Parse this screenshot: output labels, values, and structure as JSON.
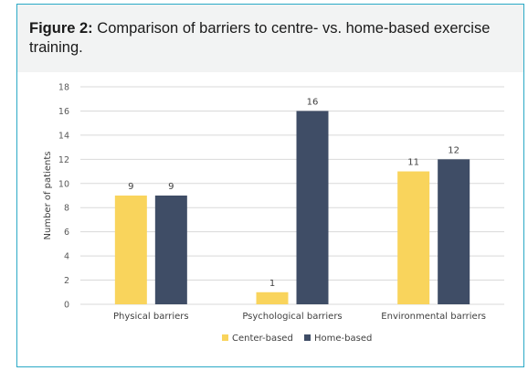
{
  "caption": {
    "label": "Figure 2:",
    "text": "Comparison of barriers to centre- vs. home-based exercise training."
  },
  "chart_data": {
    "type": "bar",
    "categories": [
      "Physical barriers",
      "Psychological barriers",
      "Environmental barriers"
    ],
    "series": [
      {
        "name": "Center-based",
        "values": [
          9,
          1,
          11
        ],
        "color": "#f9d45c"
      },
      {
        "name": "Home-based",
        "values": [
          9,
          16,
          12
        ],
        "color": "#3f4d66"
      }
    ],
    "title": "",
    "xlabel": "",
    "ylabel": "Number of patients",
    "ylim": [
      0,
      18
    ],
    "yticks": [
      0,
      2,
      4,
      6,
      8,
      10,
      12,
      14,
      16,
      18
    ],
    "grid": true,
    "data_labels": true,
    "legend_position": "bottom"
  }
}
